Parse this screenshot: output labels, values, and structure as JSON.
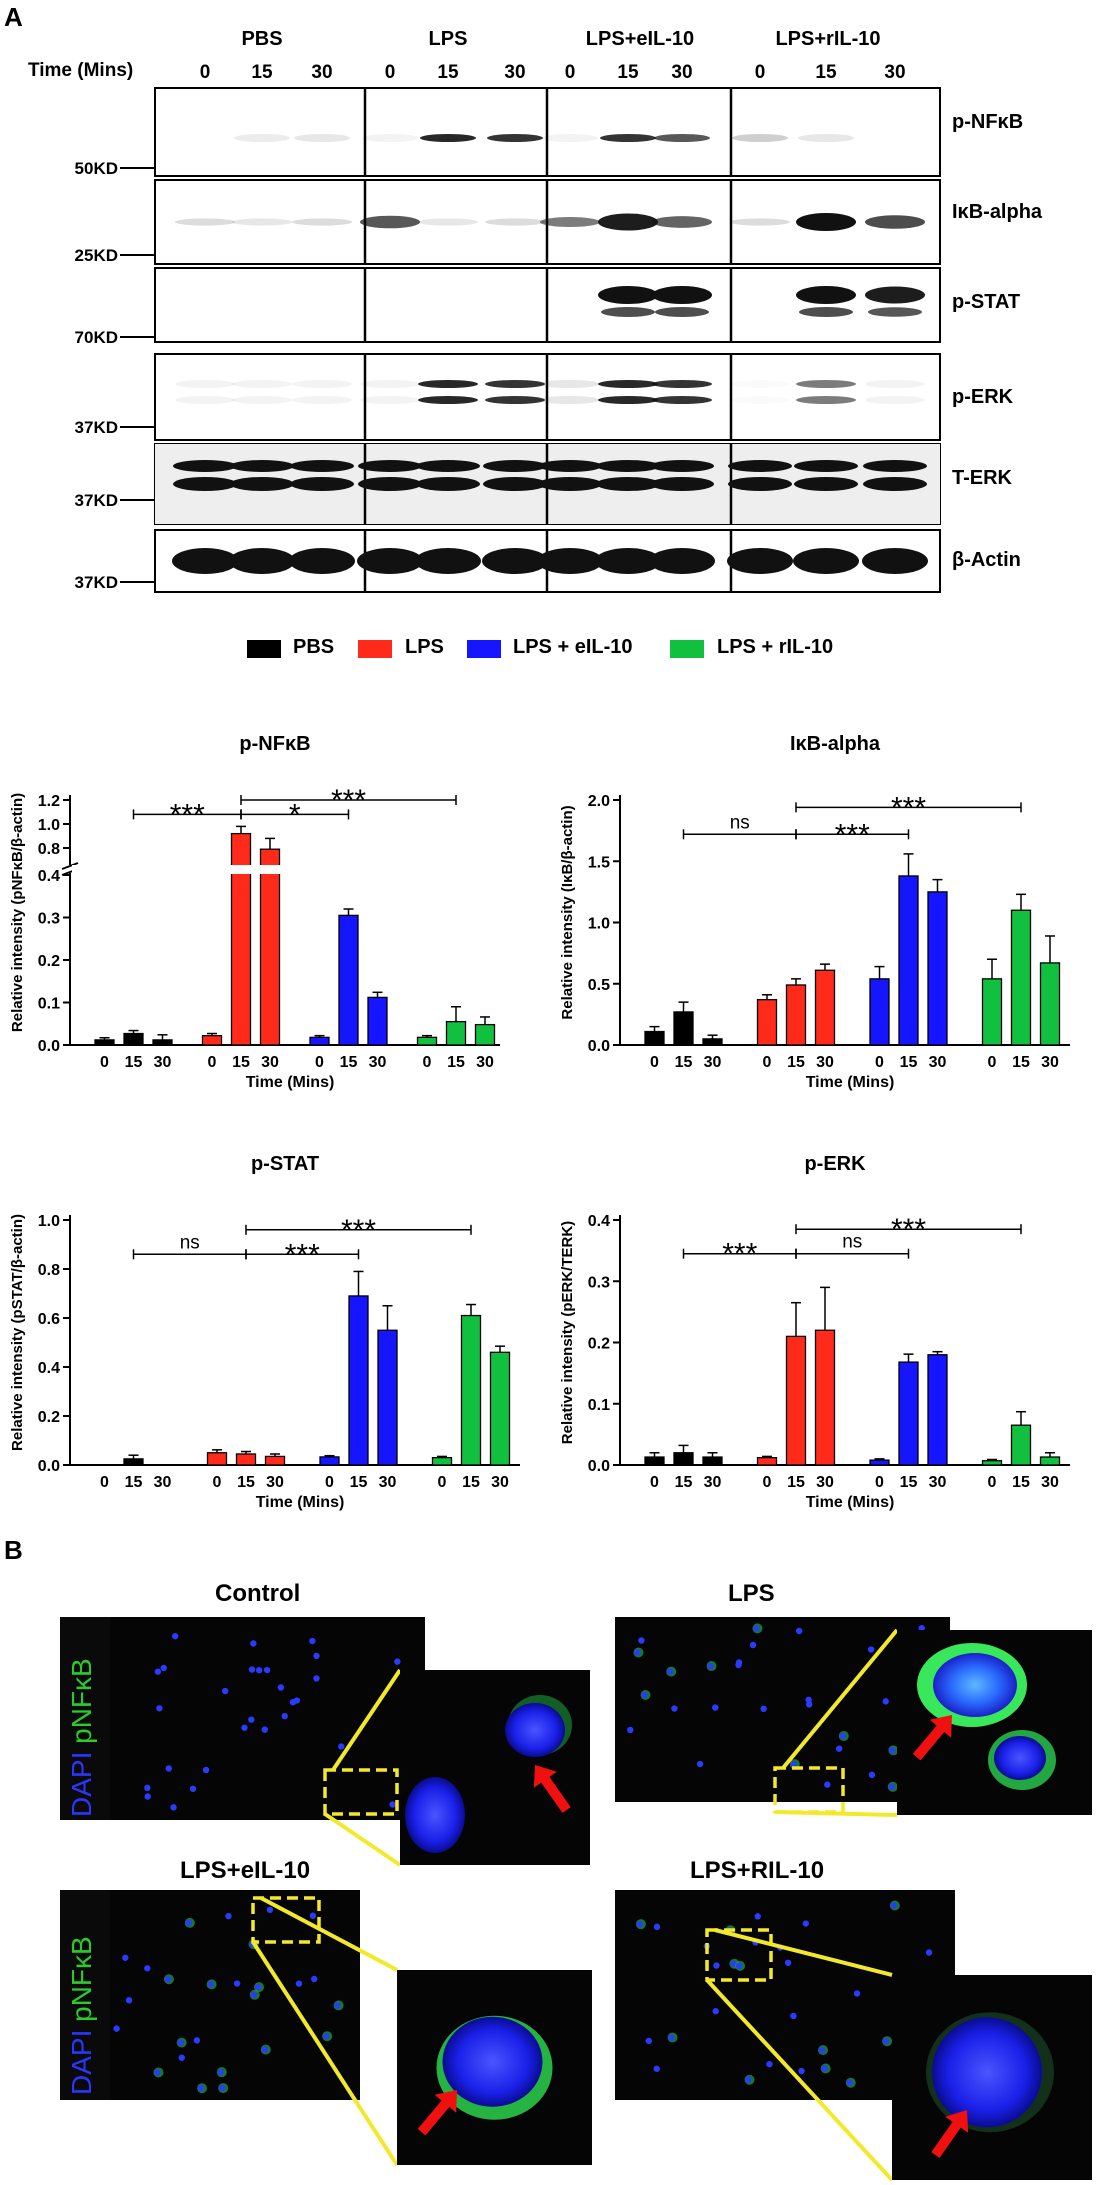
{
  "panel_a": {
    "letter": "A",
    "time_label": "Time (Mins)",
    "groups": [
      "PBS",
      "LPS",
      "LPS+eIL-10",
      "LPS+rIL-10"
    ],
    "time_points": [
      "0",
      "15",
      "30"
    ],
    "blots": [
      {
        "name": "p-NFκB",
        "marker": "50KD"
      },
      {
        "name": "IκB-alpha",
        "marker": "25KD"
      },
      {
        "name": "p-STAT",
        "marker": "70KD"
      },
      {
        "name": "p-ERK",
        "marker": "37KD"
      },
      {
        "name": "T-ERK",
        "marker": "37KD"
      },
      {
        "name": "β-Actin",
        "marker": "37KD"
      }
    ],
    "legend": [
      {
        "label": "PBS",
        "color": "#000000"
      },
      {
        "label": "LPS",
        "color": "#ff2a1a"
      },
      {
        "label": "LPS + eIL-10",
        "color": "#1515ff"
      },
      {
        "label": "LPS + rIL-10",
        "color": "#12c040"
      }
    ]
  },
  "chart_data": [
    {
      "type": "bar",
      "title": "p-NFκB",
      "xlabel": "Time (Mins)",
      "ylabel": "Relative intensity (pNFκB/β-actin)",
      "broken_axis": true,
      "lower_ylim": [
        0,
        0.4
      ],
      "lower_ticks": [
        "0.0",
        "0.1",
        "0.2",
        "0.3",
        "0.4"
      ],
      "upper_ylim": [
        0.7,
        1.2
      ],
      "upper_ticks": [
        "0.8",
        "1.0",
        "1.2"
      ],
      "categories": [
        "0",
        "15",
        "30"
      ],
      "series": [
        {
          "name": "PBS",
          "values": [
            0.012,
            0.027,
            0.012
          ],
          "errors": [
            0.005,
            0.007,
            0.012
          ]
        },
        {
          "name": "LPS",
          "values": [
            0.022,
            0.92,
            0.79
          ],
          "errors": [
            0.005,
            0.06,
            0.09
          ]
        },
        {
          "name": "LPS + eIL-10",
          "values": [
            0.018,
            0.305,
            0.112
          ],
          "errors": [
            0.004,
            0.015,
            0.012
          ]
        },
        {
          "name": "LPS + rIL-10",
          "values": [
            0.018,
            0.055,
            0.048
          ],
          "errors": [
            0.004,
            0.035,
            0.018
          ]
        }
      ],
      "sig": [
        {
          "label": "***",
          "from": [
            0,
            1
          ],
          "to": [
            1,
            1
          ],
          "level": 1.08
        },
        {
          "label": "*",
          "from": [
            1,
            1
          ],
          "to": [
            2,
            1
          ],
          "level": 1.08
        },
        {
          "label": "***",
          "from": [
            1,
            1
          ],
          "to": [
            3,
            1
          ],
          "level": 1.2
        }
      ]
    },
    {
      "type": "bar",
      "title": "IκB-alpha",
      "xlabel": "Time (Mins)",
      "ylabel": "Relative intensity (IκB/β-actin)",
      "ylim": [
        0,
        2.0
      ],
      "ticks": [
        "0.0",
        "0.5",
        "1.0",
        "1.5",
        "2.0"
      ],
      "categories": [
        "0",
        "15",
        "30"
      ],
      "series": [
        {
          "name": "PBS",
          "values": [
            0.11,
            0.27,
            0.05
          ],
          "errors": [
            0.04,
            0.08,
            0.03
          ]
        },
        {
          "name": "LPS",
          "values": [
            0.37,
            0.49,
            0.61
          ],
          "errors": [
            0.04,
            0.05,
            0.05
          ]
        },
        {
          "name": "LPS + eIL-10",
          "values": [
            0.54,
            1.38,
            1.25
          ],
          "errors": [
            0.1,
            0.18,
            0.1
          ]
        },
        {
          "name": "LPS + rIL-10",
          "values": [
            0.54,
            1.1,
            0.67
          ],
          "errors": [
            0.16,
            0.13,
            0.22
          ]
        }
      ],
      "sig": [
        {
          "label": "ns",
          "from": [
            0,
            1
          ],
          "to": [
            1,
            1
          ],
          "level": 1.72
        },
        {
          "label": "***",
          "from": [
            1,
            1
          ],
          "to": [
            2,
            1
          ],
          "level": 1.72
        },
        {
          "label": "***",
          "from": [
            1,
            1
          ],
          "to": [
            3,
            1
          ],
          "level": 1.94
        }
      ]
    },
    {
      "type": "bar",
      "title": "p-STAT",
      "xlabel": "Time (Mins)",
      "ylabel": "Relative intensity (pSTAT/β-actin)",
      "ylim": [
        0,
        1.0
      ],
      "ticks": [
        "0.0",
        "0.2",
        "0.4",
        "0.6",
        "0.8",
        "1.0"
      ],
      "categories": [
        "0",
        "15",
        "30"
      ],
      "series": [
        {
          "name": "PBS",
          "values": [
            0.0,
            0.025,
            0.0
          ],
          "errors": [
            0.0,
            0.015,
            0.0
          ]
        },
        {
          "name": "LPS",
          "values": [
            0.05,
            0.045,
            0.035
          ],
          "errors": [
            0.012,
            0.01,
            0.01
          ]
        },
        {
          "name": "LPS + eIL-10",
          "values": [
            0.033,
            0.69,
            0.55
          ],
          "errors": [
            0.005,
            0.1,
            0.1
          ]
        },
        {
          "name": "LPS + rIL-10",
          "values": [
            0.03,
            0.61,
            0.46
          ],
          "errors": [
            0.005,
            0.045,
            0.025
          ]
        }
      ],
      "sig": [
        {
          "label": "ns",
          "from": [
            0,
            1
          ],
          "to": [
            1,
            1
          ],
          "level": 0.86
        },
        {
          "label": "***",
          "from": [
            1,
            1
          ],
          "to": [
            2,
            1
          ],
          "level": 0.86
        },
        {
          "label": "***",
          "from": [
            1,
            1
          ],
          "to": [
            3,
            1
          ],
          "level": 0.96
        }
      ]
    },
    {
      "type": "bar",
      "title": "p-ERK",
      "xlabel": "Time (Mins)",
      "ylabel": "Relative intensity (pERK/TERK)",
      "ylim": [
        0,
        0.4
      ],
      "ticks": [
        "0.0",
        "0.1",
        "0.2",
        "0.3",
        "0.4"
      ],
      "categories": [
        "0",
        "15",
        "30"
      ],
      "series": [
        {
          "name": "PBS",
          "values": [
            0.013,
            0.02,
            0.013
          ],
          "errors": [
            0.007,
            0.012,
            0.007
          ]
        },
        {
          "name": "LPS",
          "values": [
            0.012,
            0.21,
            0.22
          ],
          "errors": [
            0.002,
            0.055,
            0.07
          ]
        },
        {
          "name": "LPS + eIL-10",
          "values": [
            0.008,
            0.168,
            0.18
          ],
          "errors": [
            0.002,
            0.013,
            0.005
          ]
        },
        {
          "name": "LPS + rIL-10",
          "values": [
            0.007,
            0.065,
            0.013
          ],
          "errors": [
            0.002,
            0.022,
            0.007
          ]
        }
      ],
      "sig": [
        {
          "label": "***",
          "from": [
            0,
            1
          ],
          "to": [
            1,
            1
          ],
          "level": 0.345
        },
        {
          "label": "ns",
          "from": [
            1,
            1
          ],
          "to": [
            2,
            1
          ],
          "level": 0.345
        },
        {
          "label": "***",
          "from": [
            1,
            1
          ],
          "to": [
            3,
            1
          ],
          "level": 0.385
        }
      ]
    }
  ],
  "panel_b": {
    "letter": "B",
    "stain_dapi": "DAPI",
    "stain_marker": "pNFκB",
    "images": [
      "Control",
      "LPS",
      "LPS+eIL-10",
      "LPS+RIL-10"
    ]
  }
}
